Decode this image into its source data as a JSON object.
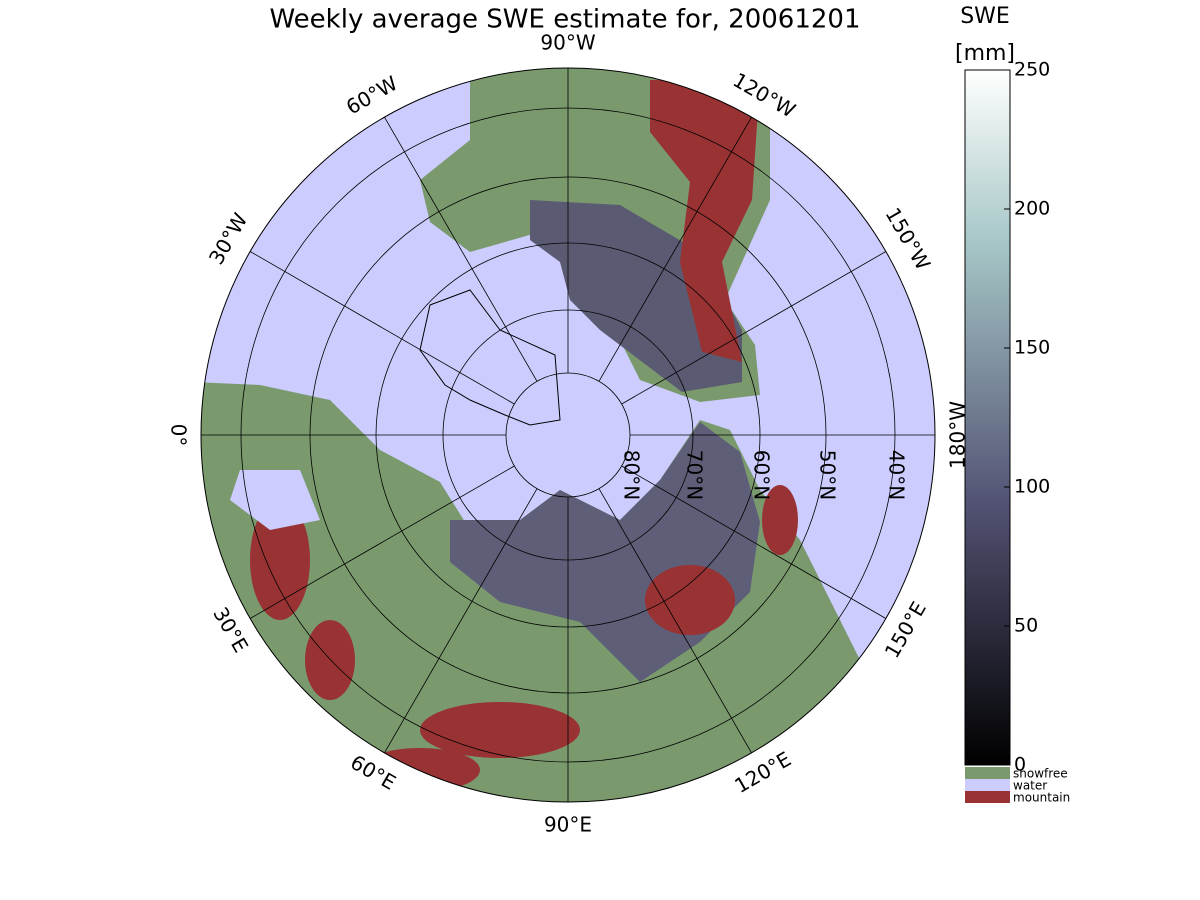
{
  "title": "Weekly average SWE estimate for, 20061201",
  "graticule": {
    "meridian_labels": [
      "90°W",
      "120°W",
      "150°W",
      "180°W",
      "150°E",
      "120°E",
      "90°E",
      "60°E",
      "30°E",
      "0°",
      "30°W",
      "60°W"
    ],
    "parallel_labels": [
      "80°N",
      "70°N",
      "60°N",
      "50°N",
      "40°N"
    ]
  },
  "colorbar": {
    "label": "SWE",
    "unit": "[mm]",
    "lim": [
      0,
      250
    ],
    "ticks": [
      0,
      50,
      100,
      150,
      200,
      250
    ],
    "classes": [
      {
        "name": "snowfree",
        "color": "#7a9a6e"
      },
      {
        "name": "water",
        "color": "#ccccff"
      },
      {
        "name": "mountain",
        "color": "#993333"
      }
    ]
  }
}
